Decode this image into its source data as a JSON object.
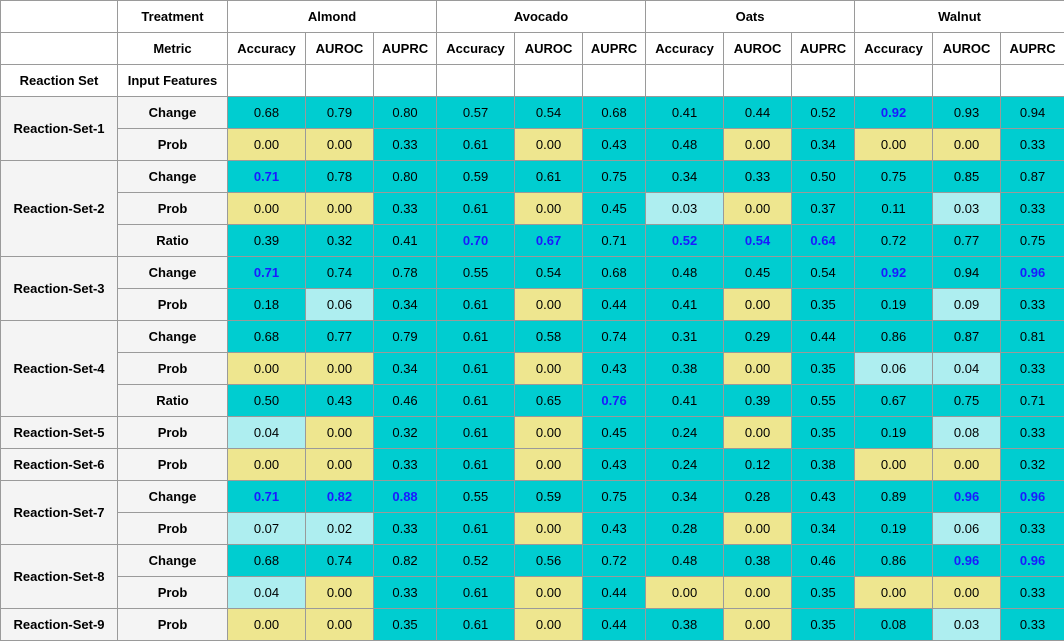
{
  "header": {
    "treatment_label": "Treatment",
    "metric_label": "Metric",
    "reaction_set_label": "Reaction Set",
    "input_features_label": "Input Features",
    "groups": [
      "Almond",
      "Avocado",
      "Oats",
      "Walnut"
    ],
    "metrics": [
      "Accuracy",
      "AUROC",
      "AUPRC"
    ]
  },
  "colors": {
    "teal": "#00cdd0",
    "yellow": "#eee68f",
    "light_cyan": "#aeeef0",
    "best_text": "#1a1aff"
  },
  "rows": [
    {
      "set": "Reaction-Set-1",
      "feature": "Change",
      "values": [
        "0.68",
        "0.79",
        "0.80",
        "0.57",
        "0.54",
        "0.68",
        "0.41",
        "0.44",
        "0.52",
        "0.92",
        "0.93",
        "0.94"
      ],
      "colors": [
        "t",
        "t",
        "t",
        "t",
        "t",
        "t",
        "t",
        "t",
        "t",
        "t",
        "t",
        "t"
      ],
      "best": [
        9
      ]
    },
    {
      "set": "Reaction-Set-1",
      "feature": "Prob",
      "values": [
        "0.00",
        "0.00",
        "0.33",
        "0.61",
        "0.00",
        "0.43",
        "0.48",
        "0.00",
        "0.34",
        "0.00",
        "0.00",
        "0.33"
      ],
      "colors": [
        "y",
        "y",
        "t",
        "t",
        "y",
        "t",
        "t",
        "y",
        "t",
        "y",
        "y",
        "t"
      ],
      "best": []
    },
    {
      "set": "Reaction-Set-2",
      "feature": "Change",
      "values": [
        "0.71",
        "0.78",
        "0.80",
        "0.59",
        "0.61",
        "0.75",
        "0.34",
        "0.33",
        "0.50",
        "0.75",
        "0.85",
        "0.87"
      ],
      "colors": [
        "t",
        "t",
        "t",
        "t",
        "t",
        "t",
        "t",
        "t",
        "t",
        "t",
        "t",
        "t"
      ],
      "best": [
        0
      ]
    },
    {
      "set": "Reaction-Set-2",
      "feature": "Prob",
      "values": [
        "0.00",
        "0.00",
        "0.33",
        "0.61",
        "0.00",
        "0.45",
        "0.03",
        "0.00",
        "0.37",
        "0.11",
        "0.03",
        "0.33"
      ],
      "colors": [
        "y",
        "y",
        "t",
        "t",
        "y",
        "t",
        "l",
        "y",
        "t",
        "t",
        "l",
        "t"
      ],
      "best": []
    },
    {
      "set": "Reaction-Set-2",
      "feature": "Ratio",
      "values": [
        "0.39",
        "0.32",
        "0.41",
        "0.70",
        "0.67",
        "0.71",
        "0.52",
        "0.54",
        "0.64",
        "0.72",
        "0.77",
        "0.75"
      ],
      "colors": [
        "t",
        "t",
        "t",
        "t",
        "t",
        "t",
        "t",
        "t",
        "t",
        "t",
        "t",
        "t"
      ],
      "best": [
        3,
        4,
        6,
        7,
        8
      ]
    },
    {
      "set": "Reaction-Set-3",
      "feature": "Change",
      "values": [
        "0.71",
        "0.74",
        "0.78",
        "0.55",
        "0.54",
        "0.68",
        "0.48",
        "0.45",
        "0.54",
        "0.92",
        "0.94",
        "0.96"
      ],
      "colors": [
        "t",
        "t",
        "t",
        "t",
        "t",
        "t",
        "t",
        "t",
        "t",
        "t",
        "t",
        "t"
      ],
      "best": [
        0,
        9,
        11
      ]
    },
    {
      "set": "Reaction-Set-3",
      "feature": "Prob",
      "values": [
        "0.18",
        "0.06",
        "0.34",
        "0.61",
        "0.00",
        "0.44",
        "0.41",
        "0.00",
        "0.35",
        "0.19",
        "0.09",
        "0.33"
      ],
      "colors": [
        "t",
        "l",
        "t",
        "t",
        "y",
        "t",
        "t",
        "y",
        "t",
        "t",
        "l",
        "t"
      ],
      "best": []
    },
    {
      "set": "Reaction-Set-4",
      "feature": "Change",
      "values": [
        "0.68",
        "0.77",
        "0.79",
        "0.61",
        "0.58",
        "0.74",
        "0.31",
        "0.29",
        "0.44",
        "0.86",
        "0.87",
        "0.81"
      ],
      "colors": [
        "t",
        "t",
        "t",
        "t",
        "t",
        "t",
        "t",
        "t",
        "t",
        "t",
        "t",
        "t"
      ],
      "best": []
    },
    {
      "set": "Reaction-Set-4",
      "feature": "Prob",
      "values": [
        "0.00",
        "0.00",
        "0.34",
        "0.61",
        "0.00",
        "0.43",
        "0.38",
        "0.00",
        "0.35",
        "0.06",
        "0.04",
        "0.33"
      ],
      "colors": [
        "y",
        "y",
        "t",
        "t",
        "y",
        "t",
        "t",
        "y",
        "t",
        "l",
        "l",
        "t"
      ],
      "best": []
    },
    {
      "set": "Reaction-Set-4",
      "feature": "Ratio",
      "values": [
        "0.50",
        "0.43",
        "0.46",
        "0.61",
        "0.65",
        "0.76",
        "0.41",
        "0.39",
        "0.55",
        "0.67",
        "0.75",
        "0.71"
      ],
      "colors": [
        "t",
        "t",
        "t",
        "t",
        "t",
        "t",
        "t",
        "t",
        "t",
        "t",
        "t",
        "t"
      ],
      "best": [
        5
      ]
    },
    {
      "set": "Reaction-Set-5",
      "feature": "Prob",
      "values": [
        "0.04",
        "0.00",
        "0.32",
        "0.61",
        "0.00",
        "0.45",
        "0.24",
        "0.00",
        "0.35",
        "0.19",
        "0.08",
        "0.33"
      ],
      "colors": [
        "l",
        "y",
        "t",
        "t",
        "y",
        "t",
        "t",
        "y",
        "t",
        "t",
        "l",
        "t"
      ],
      "best": []
    },
    {
      "set": "Reaction-Set-6",
      "feature": "Prob",
      "values": [
        "0.00",
        "0.00",
        "0.33",
        "0.61",
        "0.00",
        "0.43",
        "0.24",
        "0.12",
        "0.38",
        "0.00",
        "0.00",
        "0.32"
      ],
      "colors": [
        "y",
        "y",
        "t",
        "t",
        "y",
        "t",
        "t",
        "t",
        "t",
        "y",
        "y",
        "t"
      ],
      "best": []
    },
    {
      "set": "Reaction-Set-7",
      "feature": "Change",
      "values": [
        "0.71",
        "0.82",
        "0.88",
        "0.55",
        "0.59",
        "0.75",
        "0.34",
        "0.28",
        "0.43",
        "0.89",
        "0.96",
        "0.96"
      ],
      "colors": [
        "t",
        "t",
        "t",
        "t",
        "t",
        "t",
        "t",
        "t",
        "t",
        "t",
        "t",
        "t"
      ],
      "best": [
        0,
        1,
        2,
        10,
        11
      ]
    },
    {
      "set": "Reaction-Set-7",
      "feature": "Prob",
      "values": [
        "0.07",
        "0.02",
        "0.33",
        "0.61",
        "0.00",
        "0.43",
        "0.28",
        "0.00",
        "0.34",
        "0.19",
        "0.06",
        "0.33"
      ],
      "colors": [
        "l",
        "l",
        "t",
        "t",
        "y",
        "t",
        "t",
        "y",
        "t",
        "t",
        "l",
        "t"
      ],
      "best": []
    },
    {
      "set": "Reaction-Set-8",
      "feature": "Change",
      "values": [
        "0.68",
        "0.74",
        "0.82",
        "0.52",
        "0.56",
        "0.72",
        "0.48",
        "0.38",
        "0.46",
        "0.86",
        "0.96",
        "0.96"
      ],
      "colors": [
        "t",
        "t",
        "t",
        "t",
        "t",
        "t",
        "t",
        "t",
        "t",
        "t",
        "t",
        "t"
      ],
      "best": [
        10,
        11
      ]
    },
    {
      "set": "Reaction-Set-8",
      "feature": "Prob",
      "values": [
        "0.04",
        "0.00",
        "0.33",
        "0.61",
        "0.00",
        "0.44",
        "0.00",
        "0.00",
        "0.35",
        "0.00",
        "0.00",
        "0.33"
      ],
      "colors": [
        "l",
        "y",
        "t",
        "t",
        "y",
        "t",
        "y",
        "y",
        "t",
        "y",
        "y",
        "t"
      ],
      "best": []
    },
    {
      "set": "Reaction-Set-9",
      "feature": "Prob",
      "values": [
        "0.00",
        "0.00",
        "0.35",
        "0.61",
        "0.00",
        "0.44",
        "0.38",
        "0.00",
        "0.35",
        "0.08",
        "0.03",
        "0.33"
      ],
      "colors": [
        "y",
        "y",
        "t",
        "t",
        "y",
        "t",
        "t",
        "y",
        "t",
        "t",
        "l",
        "t"
      ],
      "best": []
    }
  ]
}
